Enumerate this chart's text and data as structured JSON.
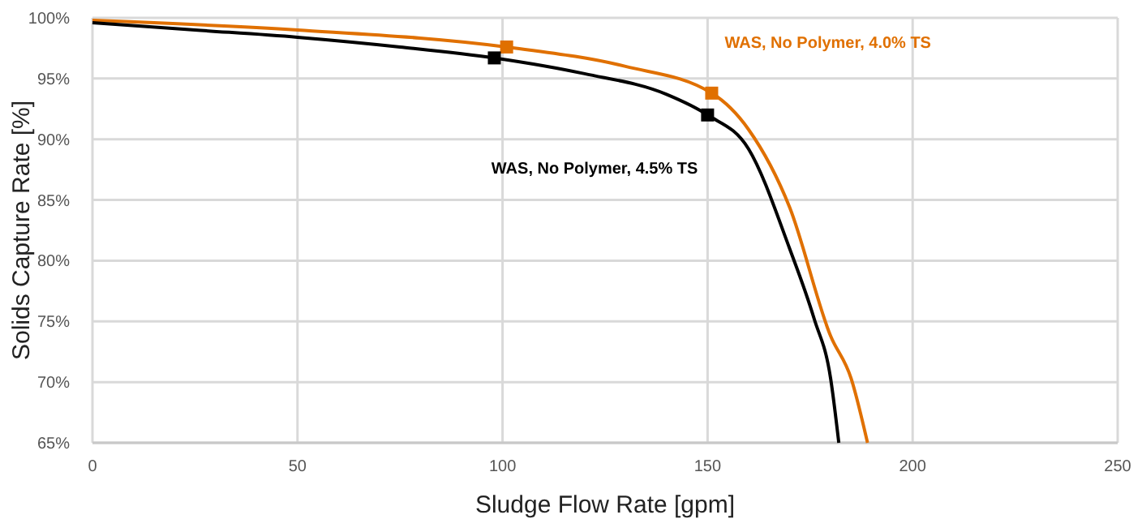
{
  "chart_data": {
    "type": "line",
    "xlabel": "Sludge Flow Rate [gpm]",
    "ylabel": "Solids Capture Rate [%]",
    "xlim": [
      0,
      250
    ],
    "xticks": [
      0,
      50,
      100,
      150,
      200,
      250
    ],
    "ylim": [
      65,
      100
    ],
    "yticks": [
      {
        "value": 65,
        "label": "65%"
      },
      {
        "value": 70,
        "label": "70%"
      },
      {
        "value": 75,
        "label": "75%"
      },
      {
        "value": 80,
        "label": "80%"
      },
      {
        "value": 85,
        "label": "85%"
      },
      {
        "value": 90,
        "label": "90%"
      },
      {
        "value": 95,
        "label": "95%"
      },
      {
        "value": 100,
        "label": "100%"
      }
    ],
    "grid": true,
    "series": [
      {
        "name": "WAS, No Polymer, 4.0% TS",
        "color": "#e07000",
        "x": [
          0,
          50,
          101,
          130,
          151,
          160,
          170,
          180,
          185,
          189
        ],
        "values": [
          99.8,
          99.0,
          97.6,
          96.0,
          93.8,
          90.8,
          84.4,
          73.8,
          70.3,
          65
        ]
      },
      {
        "name": "WAS, No Polymer, 4.5% TS",
        "color": "#000000",
        "x": [
          0,
          25,
          50,
          75,
          98,
          120,
          140,
          150,
          160,
          170,
          176,
          180,
          182
        ],
        "values": [
          99.6,
          99.0,
          98.4,
          97.6,
          96.7,
          95.4,
          93.7,
          92.0,
          89.2,
          81.0,
          75.2,
          70.3,
          65
        ]
      },
      {
        "color": "#e07000",
        "type": "scatter",
        "marker": "square",
        "x": [
          101,
          151
        ],
        "values": [
          97.6,
          93.8
        ]
      },
      {
        "color": "#000000",
        "type": "scatter",
        "marker": "square",
        "x": [
          98,
          150
        ],
        "values": [
          96.7,
          92.0
        ]
      }
    ]
  }
}
